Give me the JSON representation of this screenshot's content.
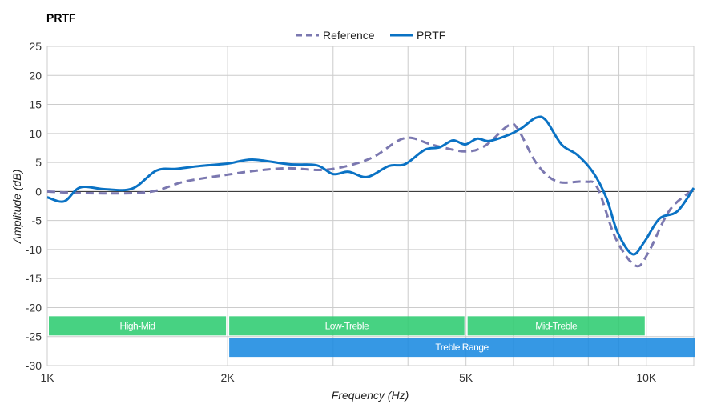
{
  "chart_data": {
    "type": "line",
    "title": "PRTF",
    "xlabel": "Frequency (Hz)",
    "ylabel": "Amplitude (dB)",
    "x_scale": "log",
    "xlim": [
      1000,
      12000
    ],
    "ylim": [
      -30,
      25
    ],
    "grid": true,
    "legend_placement": "top-center",
    "x_ticks": [
      {
        "v": 1000,
        "label": "1K"
      },
      {
        "v": 2000,
        "label": "2K"
      },
      {
        "v": 5000,
        "label": "5K"
      },
      {
        "v": 10000,
        "label": "10K"
      }
    ],
    "x_minor_grid": [
      3000,
      4000,
      6000,
      7000,
      8000,
      9000
    ],
    "y_ticks": [
      25,
      20,
      15,
      10,
      5,
      0,
      -5,
      -10,
      -15,
      -20,
      -25,
      -30
    ],
    "bands": [
      {
        "label": "High-Mid",
        "from": 1000,
        "to": 2000,
        "y": [
          -21.5,
          -24.8
        ],
        "color": "#2ecc71"
      },
      {
        "label": "Low-Treble",
        "from": 2000,
        "to": 5000,
        "y": [
          -21.5,
          -24.8
        ],
        "color": "#2ecc71"
      },
      {
        "label": "Mid-Treble",
        "from": 5000,
        "to": 10000,
        "y": [
          -21.5,
          -24.8
        ],
        "color": "#2ecc71"
      },
      {
        "label": "Treble Range",
        "from": 2000,
        "to": 12000,
        "y": [
          -25.2,
          -28.5
        ],
        "color": "#1a8ae0"
      }
    ],
    "series": [
      {
        "name": "Reference",
        "color": "#7b78b0",
        "dash": true,
        "x": [
          1000,
          1170,
          1474,
          1694,
          2000,
          2235,
          2530,
          2858,
          3140,
          3497,
          3954,
          4404,
          4984,
          5384,
          5870,
          6090,
          6572,
          7105,
          7912,
          8290,
          8890,
          9603,
          10080,
          10940,
          12000
        ],
        "y": [
          0,
          -0.3,
          -0.1,
          1.7,
          2.9,
          3.6,
          4.0,
          3.7,
          4.3,
          5.9,
          9.2,
          8.0,
          6.9,
          7.9,
          11.3,
          10.9,
          4.7,
          1.7,
          1.7,
          0.6,
          -8.1,
          -12.8,
          -10.5,
          -3.2,
          0.4
        ]
      },
      {
        "name": "PRTF",
        "color": "#0a72c4",
        "dash": false,
        "x": [
          1000,
          1067,
          1135,
          1245,
          1386,
          1521,
          1642,
          1801,
          2000,
          2200,
          2530,
          2818,
          3000,
          3184,
          3418,
          3718,
          3954,
          4270,
          4515,
          4757,
          4984,
          5220,
          5466,
          5905,
          6188,
          6540,
          6794,
          7218,
          7670,
          8149,
          8584,
          8950,
          9480,
          9922,
          10515,
          11270,
          12000
        ],
        "y": [
          -1,
          -1.7,
          0.7,
          0.4,
          0.5,
          3.6,
          3.9,
          4.4,
          4.8,
          5.5,
          4.7,
          4.5,
          3.0,
          3.4,
          2.5,
          4.4,
          4.7,
          7.2,
          7.6,
          8.8,
          8.1,
          9.1,
          8.7,
          9.8,
          10.9,
          12.7,
          12.3,
          8.1,
          6.3,
          3.3,
          -1.2,
          -7.0,
          -10.8,
          -8.7,
          -4.7,
          -3.4,
          0.6
        ]
      }
    ]
  }
}
